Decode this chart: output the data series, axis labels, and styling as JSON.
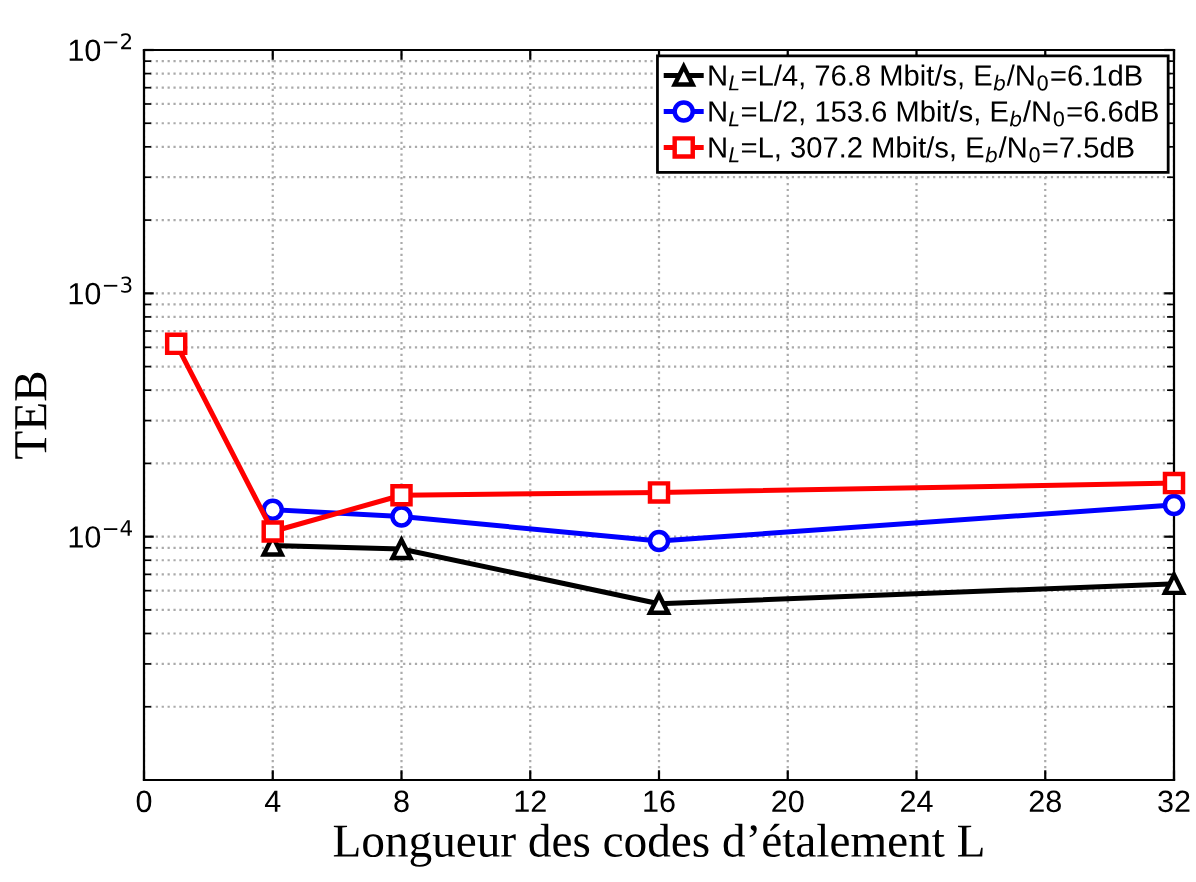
{
  "chart_data": {
    "type": "line",
    "xlabel": "Longueur des codes d’étalement L",
    "ylabel": "TEB",
    "log": "y",
    "xlim": [
      0,
      32
    ],
    "xticks": [
      0,
      4,
      8,
      12,
      16,
      20,
      24,
      28,
      32
    ],
    "ylim": [
      1e-05,
      0.01
    ],
    "yticks": [
      {
        "value": 0.0001,
        "label": "10$^{−4}$"
      },
      {
        "value": 0.001,
        "label": "10$^{−3}$"
      },
      {
        "value": 0.01,
        "label": "10$^{−2}$"
      }
    ],
    "grid": true,
    "legend": "top right",
    "line_style": "solid",
    "series": [
      {
        "name": "N$_{L}$=L/4, 76.8 Mbit/s, E$_{b}$/N$_{0}$=6.1dB",
        "color": "#000000",
        "marker": "triangle",
        "x": [
          4,
          8,
          16,
          32
        ],
        "values": [
          9.2e-05,
          8.9e-05,
          5.3e-05,
          6.4e-05
        ]
      },
      {
        "name": "N$_{L}$=L/2, 153.6 Mbit/s, E$_{b}$/N$_{0}$=6.6dB",
        "color": "#0000ff",
        "marker": "circle",
        "x": [
          4,
          8,
          16,
          32
        ],
        "values": [
          0.000129,
          0.000121,
          9.6e-05,
          0.000135
        ]
      },
      {
        "name": "N$_{L}$=L, 307.2 Mbit/s, E$_{b}$/N$_{0}$=7.5dB",
        "color": "#ff0000",
        "marker": "square",
        "x": [
          1,
          4,
          8,
          16,
          32
        ],
        "values": [
          0.00062,
          0.000105,
          0.000148,
          0.000152,
          0.000166
        ]
      }
    ]
  }
}
